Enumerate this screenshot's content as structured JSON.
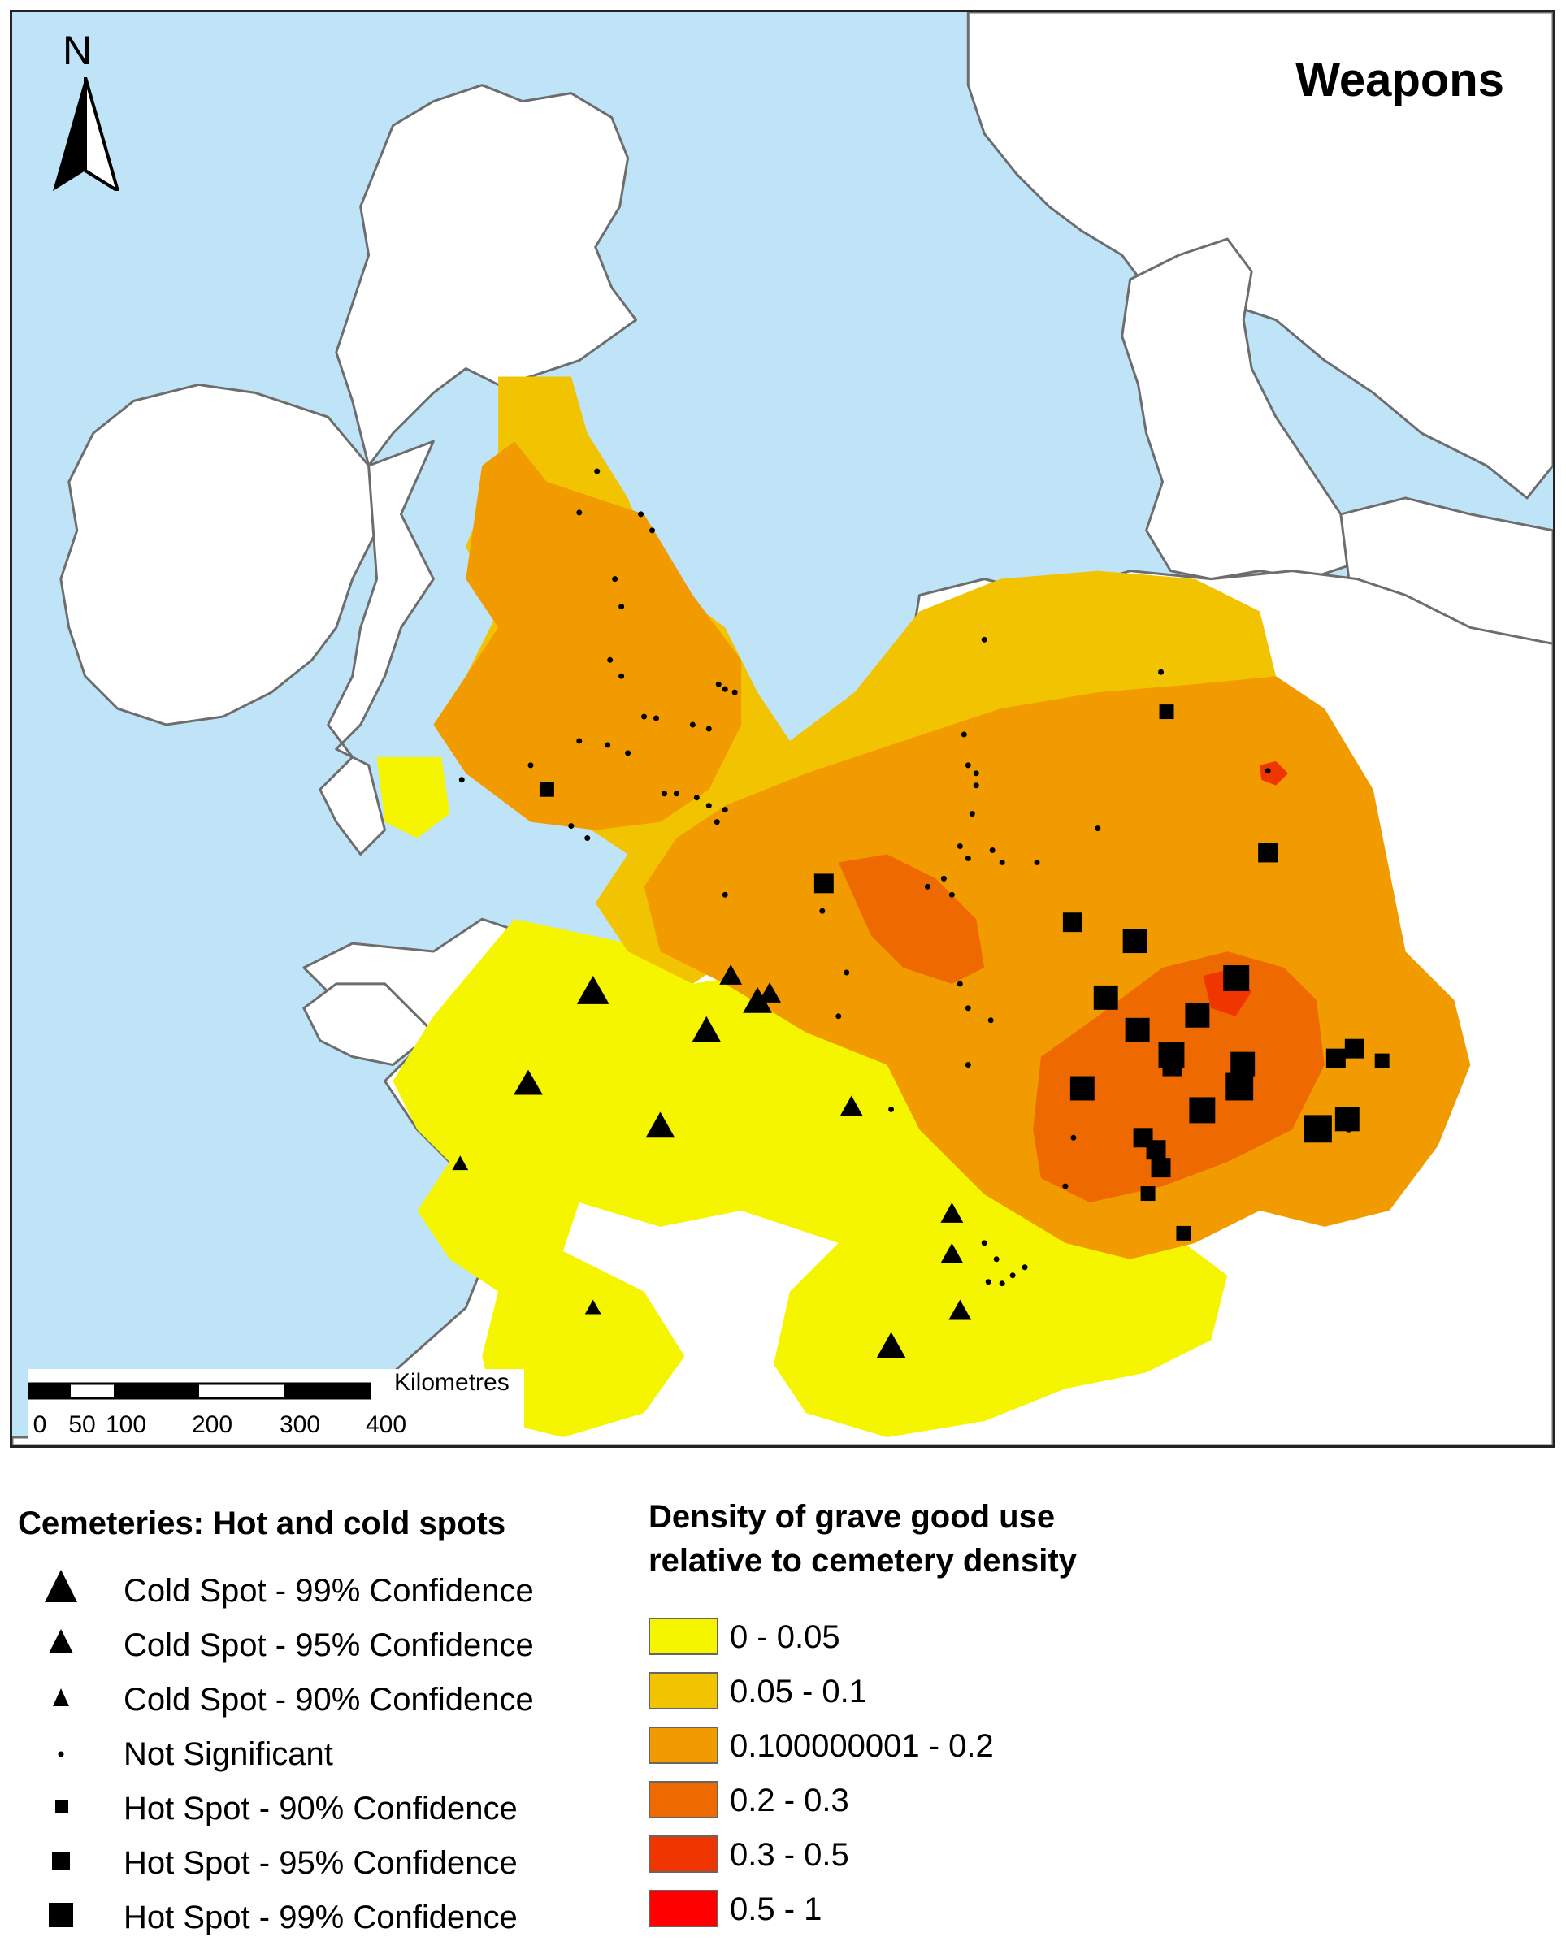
{
  "map": {
    "title": "Weapons",
    "north_label": "N",
    "scalebar": {
      "unit": "Kilometres",
      "ticks": [
        "0",
        "50",
        "100",
        "200",
        "300",
        "400"
      ]
    },
    "colors": {
      "sea": "#bfe3f7",
      "land": "#ffffff",
      "coast": "#6d6d6d",
      "d0": "#f5f500",
      "d1": "#f2c300",
      "d2": "#f19b00",
      "d3": "#ee6a00",
      "d4": "#f03600",
      "d5": "#ff0000"
    }
  },
  "legend": {
    "hotspots": {
      "title": "Cemeteries: Hot and cold spots",
      "items": [
        {
          "label": "Cold Spot - 99% Confidence",
          "symbol": "triangle-large-icon"
        },
        {
          "label": "Cold Spot - 95% Confidence",
          "symbol": "triangle-medium-icon"
        },
        {
          "label": "Cold Spot - 90% Confidence",
          "symbol": "triangle-small-icon"
        },
        {
          "label": "Not Significant",
          "symbol": "dot-icon"
        },
        {
          "label": "Hot Spot - 90% Confidence",
          "symbol": "square-small-icon"
        },
        {
          "label": "Hot Spot - 95% Confidence",
          "symbol": "square-medium-icon"
        },
        {
          "label": "Hot Spot - 99% Confidence",
          "symbol": "square-large-icon"
        }
      ]
    },
    "density": {
      "title_line1": "Density of grave good use",
      "title_line2": "relative to cemetery density",
      "items": [
        {
          "label": "0 - 0.05",
          "color": "#f5f500"
        },
        {
          "label": "0.05 - 0.1",
          "color": "#f2c300"
        },
        {
          "label": "0.100000001 - 0.2",
          "color": "#f19b00"
        },
        {
          "label": "0.2 - 0.3",
          "color": "#ee6a00"
        },
        {
          "label": "0.3 - 0.5",
          "color": "#f03600"
        },
        {
          "label": "0.5 - 1",
          "color": "#ff0000"
        }
      ]
    }
  }
}
